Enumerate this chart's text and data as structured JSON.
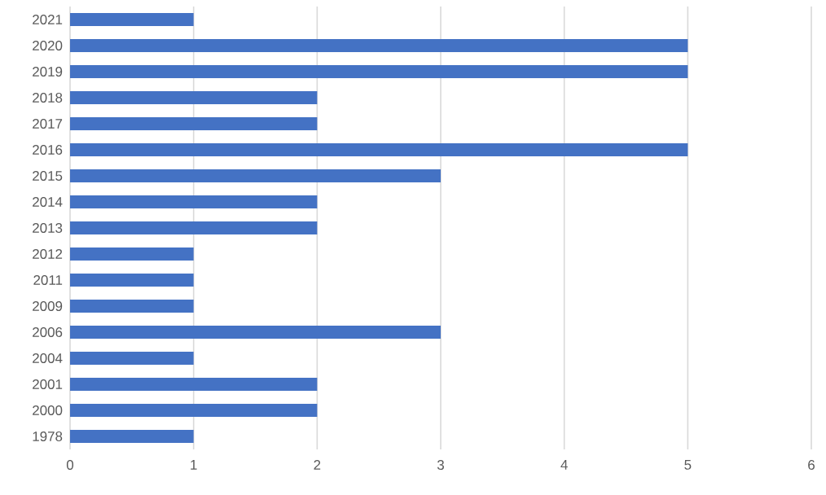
{
  "chart_data": {
    "type": "bar",
    "orientation": "horizontal",
    "categories": [
      "2021",
      "2020",
      "2019",
      "2018",
      "2017",
      "2016",
      "2015",
      "2014",
      "2013",
      "2012",
      "2011",
      "2009",
      "2006",
      "2004",
      "2001",
      "2000",
      "1978"
    ],
    "values": [
      1,
      5,
      5,
      2,
      2,
      5,
      3,
      2,
      2,
      1,
      1,
      1,
      3,
      1,
      2,
      2,
      1
    ],
    "color": "#4472c4",
    "xlim": [
      0,
      6
    ],
    "xticks": [
      0,
      1,
      2,
      3,
      4,
      5,
      6
    ],
    "grid": "x"
  }
}
